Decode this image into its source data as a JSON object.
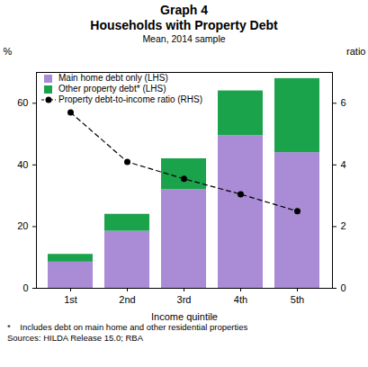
{
  "chart_data": {
    "type": "bar",
    "title": [
      "Graph 4",
      "Households with Property Debt"
    ],
    "subtitle": "Mean, 2014 sample",
    "x_label": "Income quintile",
    "y_label": "%",
    "y2_label": "ratio",
    "categories": [
      "1st",
      "2nd",
      "3rd",
      "4th",
      "5th"
    ],
    "stacked": true,
    "series": [
      {
        "name": "Main home debt only (LHS)",
        "color": "#a98bd6",
        "type": "bar",
        "values": [
          8.5,
          18.5,
          32,
          49.5,
          44
        ]
      },
      {
        "name": "Other property debt* (LHS)",
        "color": "#1ba34b",
        "type": "bar",
        "values": [
          2.5,
          5.5,
          10,
          14.5,
          24
        ]
      },
      {
        "name": "Property debt-to-income ratio (RHS)",
        "color": "#000000",
        "type": "line",
        "axis": "y2",
        "marker": "circle",
        "line_style": "dashed",
        "values": [
          5.7,
          4.1,
          3.55,
          3.05,
          2.5
        ]
      }
    ],
    "ylim": [
      0,
      70
    ],
    "yticks": [
      0,
      20,
      40,
      60
    ],
    "y2lim": [
      0,
      7
    ],
    "y2ticks": [
      0,
      2,
      4,
      6
    ],
    "grid": false,
    "legend": "top-left",
    "footnotes": [
      "*    Includes debt on main home and other residential properties",
      "Sources: HILDA Release 15.0; RBA"
    ]
  }
}
